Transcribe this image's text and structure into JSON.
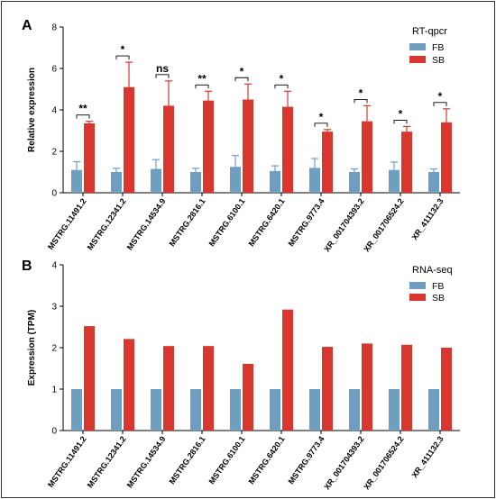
{
  "colors": {
    "fb": "#6f9ec0",
    "sb": "#d7372f",
    "axis": "#000000",
    "frame": "#333333"
  },
  "chart_data": [
    {
      "panel_label": "A",
      "type": "bar",
      "title": "",
      "xlabel": "",
      "ylabel": "Relative expression",
      "ylim": [
        0,
        8
      ],
      "yticks": [
        0,
        2,
        4,
        6,
        8
      ],
      "grid": false,
      "legend_title": "RT-qpcr",
      "legend_position": "top-right",
      "error_bars": true,
      "categories": [
        "MSTRG.11491.2",
        "MSTRG.12341.2",
        "MSTRG.14534.9",
        "MSTRG.2816.1",
        "MSTRG.6100.1",
        "MSTRG.6420.1",
        "MSTRG.9773.4",
        "XR_001704393.2",
        "XR_001706524.2",
        "XR_411132.3"
      ],
      "series": [
        {
          "name": "FB",
          "values": [
            1.1,
            1.0,
            1.15,
            1.0,
            1.25,
            1.05,
            1.2,
            1.0,
            1.1,
            1.0
          ],
          "errors": [
            0.4,
            0.18,
            0.45,
            0.18,
            0.55,
            0.25,
            0.45,
            0.15,
            0.38,
            0.15
          ]
        },
        {
          "name": "SB",
          "values": [
            3.35,
            5.1,
            4.2,
            4.45,
            4.5,
            4.15,
            2.95,
            3.45,
            2.95,
            3.4
          ],
          "errors": [
            0.1,
            1.2,
            1.2,
            0.45,
            0.75,
            0.75,
            0.1,
            0.75,
            0.25,
            0.65
          ]
        }
      ],
      "significance": [
        "**",
        "*",
        "ns",
        "**",
        "*",
        "*",
        "*",
        "*",
        "*",
        "*"
      ]
    },
    {
      "panel_label": "B",
      "type": "bar",
      "title": "",
      "xlabel": "",
      "ylabel": "Expression (TPM)",
      "ylim": [
        0,
        4
      ],
      "yticks": [
        0,
        1,
        2,
        3,
        4
      ],
      "grid": false,
      "legend_title": "RNA-seq",
      "legend_position": "top-right",
      "categories": [
        "MSTRG.11491.2",
        "MSTRG.12341.2",
        "MSTRG.14534.9",
        "MSTRG.2816.1",
        "MSTRG.6100.1",
        "MSTRG.6420.1",
        "MSTRG.9773.4",
        "XR_001704393.2",
        "XR_001706524.2",
        "XR_411132.3"
      ],
      "series": [
        {
          "name": "FB",
          "values": [
            1,
            1,
            1,
            1,
            1,
            1,
            1,
            1,
            1,
            1
          ]
        },
        {
          "name": "SB",
          "values": [
            2.52,
            2.21,
            2.04,
            2.04,
            1.61,
            2.92,
            2.02,
            2.1,
            2.07,
            2.0
          ]
        }
      ]
    }
  ]
}
